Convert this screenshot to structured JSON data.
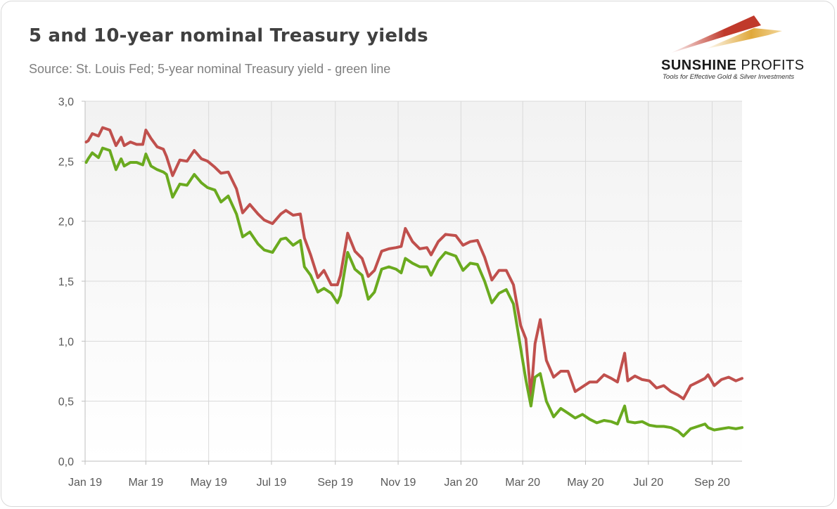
{
  "header": {
    "title": "5 and 10-year nominal Treasury yields",
    "subtitle": "Source: St. Louis Fed; 5-year nominal Treasury yield - green line"
  },
  "logo": {
    "name_bold": "SUNSHINE",
    "name_rest": " PROFITS",
    "tagline": "Tools for Effective Gold & Silver Investments"
  },
  "colors": {
    "ten_year": "#c0504d",
    "five_year": "#6aaa1f",
    "grid": "#d9d9d9",
    "plot_top": "#f2f2f2",
    "plot_bottom": "#ffffff"
  },
  "chart_data": {
    "type": "line",
    "xlabel": "",
    "ylabel": "",
    "ylim": [
      0,
      3.0
    ],
    "x_range": [
      "2019-01-01",
      "2020-09-30"
    ],
    "y_ticks": [
      "0,0",
      "0,5",
      "1,0",
      "1,5",
      "2,0",
      "2,5",
      "3,0"
    ],
    "y_tick_values": [
      0,
      0.5,
      1.0,
      1.5,
      2.0,
      2.5,
      3.0
    ],
    "x_tick_labels": [
      "Jan 19",
      "Mar 19",
      "May 19",
      "Jul 19",
      "Sep 19",
      "Nov 19",
      "Jan 20",
      "Mar 20",
      "May 20",
      "Jul 20",
      "Sep 20"
    ],
    "x_tick_dates": [
      "2019-01-01",
      "2019-03-01",
      "2019-05-01",
      "2019-07-01",
      "2019-09-01",
      "2019-11-01",
      "2020-01-01",
      "2020-03-01",
      "2020-05-01",
      "2020-07-01",
      "2020-09-01"
    ],
    "grid": true,
    "legend": "none",
    "series": [
      {
        "points": [
          [
            "2019-01-02",
            2.66
          ],
          [
            "2019-01-04",
            2.67
          ],
          [
            "2019-01-08",
            2.73
          ],
          [
            "2019-01-14",
            2.71
          ],
          [
            "2019-01-18",
            2.78
          ],
          [
            "2019-01-25",
            2.76
          ],
          [
            "2019-01-31",
            2.63
          ],
          [
            "2019-02-05",
            2.7
          ],
          [
            "2019-02-08",
            2.63
          ],
          [
            "2019-02-14",
            2.66
          ],
          [
            "2019-02-20",
            2.64
          ],
          [
            "2019-02-26",
            2.64
          ],
          [
            "2019-03-01",
            2.76
          ],
          [
            "2019-03-06",
            2.69
          ],
          [
            "2019-03-12",
            2.62
          ],
          [
            "2019-03-18",
            2.6
          ],
          [
            "2019-03-21",
            2.54
          ],
          [
            "2019-03-27",
            2.38
          ],
          [
            "2019-04-03",
            2.51
          ],
          [
            "2019-04-10",
            2.5
          ],
          [
            "2019-04-17",
            2.59
          ],
          [
            "2019-04-24",
            2.52
          ],
          [
            "2019-04-30",
            2.5
          ],
          [
            "2019-05-07",
            2.45
          ],
          [
            "2019-05-13",
            2.4
          ],
          [
            "2019-05-20",
            2.41
          ],
          [
            "2019-05-28",
            2.27
          ],
          [
            "2019-06-03",
            2.07
          ],
          [
            "2019-06-10",
            2.14
          ],
          [
            "2019-06-18",
            2.06
          ],
          [
            "2019-06-24",
            2.01
          ],
          [
            "2019-07-02",
            1.98
          ],
          [
            "2019-07-10",
            2.06
          ],
          [
            "2019-07-15",
            2.09
          ],
          [
            "2019-07-22",
            2.05
          ],
          [
            "2019-07-29",
            2.06
          ],
          [
            "2019-08-02",
            1.86
          ],
          [
            "2019-08-08",
            1.72
          ],
          [
            "2019-08-15",
            1.53
          ],
          [
            "2019-08-21",
            1.59
          ],
          [
            "2019-08-28",
            1.47
          ],
          [
            "2019-09-03",
            1.47
          ],
          [
            "2019-09-06",
            1.55
          ],
          [
            "2019-09-13",
            1.9
          ],
          [
            "2019-09-20",
            1.75
          ],
          [
            "2019-09-27",
            1.69
          ],
          [
            "2019-10-03",
            1.54
          ],
          [
            "2019-10-09",
            1.59
          ],
          [
            "2019-10-16",
            1.75
          ],
          [
            "2019-10-23",
            1.77
          ],
          [
            "2019-10-30",
            1.78
          ],
          [
            "2019-11-04",
            1.79
          ],
          [
            "2019-11-08",
            1.94
          ],
          [
            "2019-11-15",
            1.83
          ],
          [
            "2019-11-22",
            1.77
          ],
          [
            "2019-11-29",
            1.78
          ],
          [
            "2019-12-03",
            1.72
          ],
          [
            "2019-12-10",
            1.83
          ],
          [
            "2019-12-17",
            1.89
          ],
          [
            "2019-12-27",
            1.88
          ],
          [
            "2020-01-03",
            1.8
          ],
          [
            "2020-01-10",
            1.83
          ],
          [
            "2020-01-17",
            1.84
          ],
          [
            "2020-01-24",
            1.7
          ],
          [
            "2020-01-31",
            1.51
          ],
          [
            "2020-02-07",
            1.59
          ],
          [
            "2020-02-14",
            1.59
          ],
          [
            "2020-02-21",
            1.47
          ],
          [
            "2020-02-28",
            1.13
          ],
          [
            "2020-03-04",
            1.02
          ],
          [
            "2020-03-09",
            0.54
          ],
          [
            "2020-03-13",
            0.98
          ],
          [
            "2020-03-18",
            1.18
          ],
          [
            "2020-03-24",
            0.84
          ],
          [
            "2020-03-31",
            0.7
          ],
          [
            "2020-04-07",
            0.75
          ],
          [
            "2020-04-14",
            0.75
          ],
          [
            "2020-04-21",
            0.58
          ],
          [
            "2020-04-28",
            0.62
          ],
          [
            "2020-05-05",
            0.66
          ],
          [
            "2020-05-12",
            0.66
          ],
          [
            "2020-05-19",
            0.72
          ],
          [
            "2020-05-26",
            0.69
          ],
          [
            "2020-06-01",
            0.66
          ],
          [
            "2020-06-08",
            0.9
          ],
          [
            "2020-06-11",
            0.67
          ],
          [
            "2020-06-18",
            0.71
          ],
          [
            "2020-06-25",
            0.68
          ],
          [
            "2020-07-02",
            0.67
          ],
          [
            "2020-07-09",
            0.61
          ],
          [
            "2020-07-16",
            0.63
          ],
          [
            "2020-07-23",
            0.58
          ],
          [
            "2020-07-30",
            0.55
          ],
          [
            "2020-08-04",
            0.52
          ],
          [
            "2020-08-11",
            0.63
          ],
          [
            "2020-08-18",
            0.66
          ],
          [
            "2020-08-25",
            0.69
          ],
          [
            "2020-08-28",
            0.72
          ],
          [
            "2020-09-03",
            0.63
          ],
          [
            "2020-09-10",
            0.68
          ],
          [
            "2020-09-17",
            0.7
          ],
          [
            "2020-09-24",
            0.67
          ],
          [
            "2020-09-30",
            0.69
          ]
        ]
      },
      {
        "points": [
          [
            "2019-01-02",
            2.49
          ],
          [
            "2019-01-04",
            2.52
          ],
          [
            "2019-01-08",
            2.57
          ],
          [
            "2019-01-14",
            2.53
          ],
          [
            "2019-01-18",
            2.61
          ],
          [
            "2019-01-25",
            2.59
          ],
          [
            "2019-01-31",
            2.43
          ],
          [
            "2019-02-05",
            2.52
          ],
          [
            "2019-02-08",
            2.46
          ],
          [
            "2019-02-14",
            2.49
          ],
          [
            "2019-02-20",
            2.49
          ],
          [
            "2019-02-26",
            2.47
          ],
          [
            "2019-03-01",
            2.56
          ],
          [
            "2019-03-06",
            2.46
          ],
          [
            "2019-03-12",
            2.43
          ],
          [
            "2019-03-18",
            2.41
          ],
          [
            "2019-03-21",
            2.39
          ],
          [
            "2019-03-27",
            2.2
          ],
          [
            "2019-04-03",
            2.31
          ],
          [
            "2019-04-10",
            2.3
          ],
          [
            "2019-04-17",
            2.39
          ],
          [
            "2019-04-24",
            2.32
          ],
          [
            "2019-04-30",
            2.28
          ],
          [
            "2019-05-07",
            2.26
          ],
          [
            "2019-05-13",
            2.16
          ],
          [
            "2019-05-20",
            2.21
          ],
          [
            "2019-05-28",
            2.06
          ],
          [
            "2019-06-03",
            1.87
          ],
          [
            "2019-06-10",
            1.91
          ],
          [
            "2019-06-18",
            1.81
          ],
          [
            "2019-06-24",
            1.76
          ],
          [
            "2019-07-02",
            1.74
          ],
          [
            "2019-07-10",
            1.85
          ],
          [
            "2019-07-15",
            1.86
          ],
          [
            "2019-07-22",
            1.8
          ],
          [
            "2019-07-29",
            1.84
          ],
          [
            "2019-08-02",
            1.62
          ],
          [
            "2019-08-08",
            1.55
          ],
          [
            "2019-08-15",
            1.41
          ],
          [
            "2019-08-21",
            1.44
          ],
          [
            "2019-08-28",
            1.4
          ],
          [
            "2019-09-03",
            1.32
          ],
          [
            "2019-09-06",
            1.38
          ],
          [
            "2019-09-13",
            1.74
          ],
          [
            "2019-09-20",
            1.6
          ],
          [
            "2019-09-27",
            1.55
          ],
          [
            "2019-10-03",
            1.35
          ],
          [
            "2019-10-09",
            1.41
          ],
          [
            "2019-10-16",
            1.6
          ],
          [
            "2019-10-23",
            1.62
          ],
          [
            "2019-10-30",
            1.6
          ],
          [
            "2019-11-04",
            1.57
          ],
          [
            "2019-11-08",
            1.69
          ],
          [
            "2019-11-15",
            1.65
          ],
          [
            "2019-11-22",
            1.62
          ],
          [
            "2019-11-29",
            1.62
          ],
          [
            "2019-12-03",
            1.55
          ],
          [
            "2019-12-10",
            1.67
          ],
          [
            "2019-12-17",
            1.74
          ],
          [
            "2019-12-27",
            1.71
          ],
          [
            "2020-01-03",
            1.59
          ],
          [
            "2020-01-10",
            1.65
          ],
          [
            "2020-01-17",
            1.64
          ],
          [
            "2020-01-24",
            1.5
          ],
          [
            "2020-01-31",
            1.32
          ],
          [
            "2020-02-07",
            1.4
          ],
          [
            "2020-02-14",
            1.43
          ],
          [
            "2020-02-21",
            1.31
          ],
          [
            "2020-02-28",
            0.94
          ],
          [
            "2020-03-04",
            0.68
          ],
          [
            "2020-03-09",
            0.46
          ],
          [
            "2020-03-13",
            0.7
          ],
          [
            "2020-03-18",
            0.73
          ],
          [
            "2020-03-24",
            0.5
          ],
          [
            "2020-03-31",
            0.37
          ],
          [
            "2020-04-07",
            0.44
          ],
          [
            "2020-04-14",
            0.4
          ],
          [
            "2020-04-21",
            0.36
          ],
          [
            "2020-04-28",
            0.39
          ],
          [
            "2020-05-05",
            0.35
          ],
          [
            "2020-05-12",
            0.32
          ],
          [
            "2020-05-19",
            0.34
          ],
          [
            "2020-05-26",
            0.33
          ],
          [
            "2020-06-01",
            0.31
          ],
          [
            "2020-06-08",
            0.46
          ],
          [
            "2020-06-11",
            0.33
          ],
          [
            "2020-06-18",
            0.32
          ],
          [
            "2020-06-25",
            0.33
          ],
          [
            "2020-07-02",
            0.3
          ],
          [
            "2020-07-09",
            0.29
          ],
          [
            "2020-07-16",
            0.29
          ],
          [
            "2020-07-23",
            0.28
          ],
          [
            "2020-07-30",
            0.25
          ],
          [
            "2020-08-04",
            0.21
          ],
          [
            "2020-08-11",
            0.27
          ],
          [
            "2020-08-18",
            0.29
          ],
          [
            "2020-08-25",
            0.31
          ],
          [
            "2020-08-28",
            0.28
          ],
          [
            "2020-09-03",
            0.26
          ],
          [
            "2020-09-10",
            0.27
          ],
          [
            "2020-09-17",
            0.28
          ],
          [
            "2020-09-24",
            0.27
          ],
          [
            "2020-09-30",
            0.28
          ]
        ]
      }
    ]
  }
}
